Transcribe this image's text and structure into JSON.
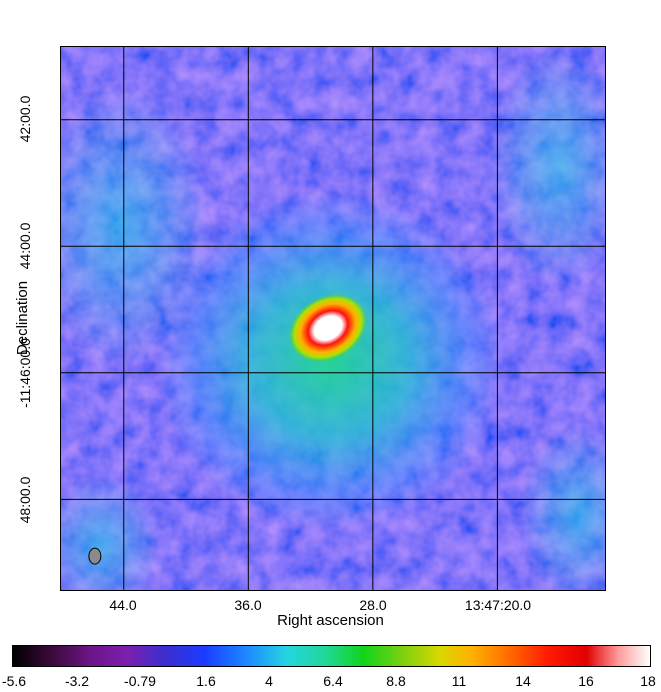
{
  "axes": {
    "xlabel": "Right ascension",
    "ylabel": "Declination",
    "xticks": [
      "44.0",
      "36.0",
      "28.0",
      "13:47:20.0"
    ],
    "yticks": [
      "42:00.0",
      "44:00.0",
      "-11:46:00.0",
      "48:00.0"
    ]
  },
  "colorbar": {
    "ticks": [
      "-5.6",
      "-3.2",
      "-0.79",
      "1.6",
      "4",
      "6.4",
      "8.8",
      "11",
      "14",
      "16",
      "18"
    ]
  },
  "colors": {
    "background": "#1f3dff",
    "grid": "#000000",
    "beam": "#8a8a8a"
  }
}
